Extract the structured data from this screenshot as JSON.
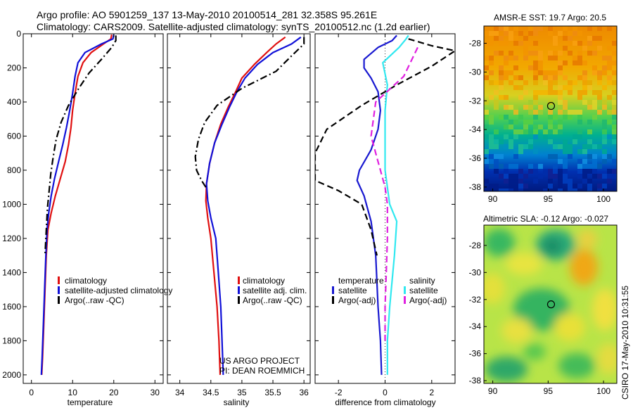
{
  "header": {
    "line1": "Argo profile: AO 5901259_137 13-May-2010 20100514_281 32.358S 95.261E",
    "line2": "Climatology: CARS2009. Satellite-adjusted climatology: synTS_20100512.nc (1.2d earlier)"
  },
  "footer_notes": {
    "project": "US ARGO PROJECT",
    "pi": "PI: DEAN ROEMMICH",
    "stamp": "CSIRO 17-May-2010 10:31:55"
  },
  "colors": {
    "climatology": "#e01010",
    "satellite": "#1010d8",
    "argo": "#000000",
    "diff_temp_sat": "#1818d0",
    "diff_sal_sat": "#30e8f0",
    "diff_sal_argo": "#e020e0"
  },
  "chart_data": [
    {
      "type": "line",
      "name": "temperature-profile",
      "xlabel": "temperature",
      "xlim": [
        -2,
        32
      ],
      "ylim": [
        2050,
        0
      ],
      "y_reversed": true,
      "x_ticks": [
        0,
        10,
        20,
        30
      ],
      "y_ticks": [
        0,
        200,
        400,
        600,
        800,
        1000,
        1200,
        1400,
        1600,
        1800,
        2000
      ],
      "legend": [
        "climatology",
        "satellite-adjusted climatology",
        "Argo(..raw -QC)"
      ],
      "legend_placement": "lower-right",
      "series": [
        {
          "name": "climatology",
          "style": "solid",
          "points": [
            [
              19.5,
              5
            ],
            [
              19.3,
              30
            ],
            [
              17.5,
              60
            ],
            [
              14.5,
              110
            ],
            [
              12.5,
              170
            ],
            [
              11.3,
              250
            ],
            [
              10.6,
              350
            ],
            [
              10.0,
              450
            ],
            [
              9.6,
              550
            ],
            [
              9.0,
              650
            ],
            [
              8.2,
              750
            ],
            [
              7.0,
              850
            ],
            [
              5.8,
              950
            ],
            [
              4.8,
              1050
            ],
            [
              4.0,
              1150
            ],
            [
              3.6,
              1300
            ],
            [
              3.3,
              1500
            ],
            [
              3.0,
              1700
            ],
            [
              2.7,
              1900
            ],
            [
              2.5,
              2000
            ]
          ]
        },
        {
          "name": "satellite-adjusted climatology",
          "style": "solid",
          "points": [
            [
              20.0,
              5
            ],
            [
              19.8,
              30
            ],
            [
              17.0,
              60
            ],
            [
              13.0,
              110
            ],
            [
              11.3,
              170
            ],
            [
              10.6,
              250
            ],
            [
              10.0,
              350
            ],
            [
              9.3,
              450
            ],
            [
              8.5,
              550
            ],
            [
              7.6,
              650
            ],
            [
              6.6,
              750
            ],
            [
              5.6,
              850
            ],
            [
              4.8,
              950
            ],
            [
              4.2,
              1050
            ],
            [
              3.8,
              1150
            ],
            [
              3.5,
              1300
            ],
            [
              3.2,
              1500
            ],
            [
              2.9,
              1700
            ],
            [
              2.6,
              1900
            ],
            [
              2.4,
              2000
            ]
          ]
        },
        {
          "name": "Argo(..raw -QC)",
          "style": "dashdot",
          "points": [
            [
              20.5,
              10
            ],
            [
              20.5,
              40
            ],
            [
              19.5,
              80
            ],
            [
              17.0,
              150
            ],
            [
              14.0,
              230
            ],
            [
              11.5,
              320
            ],
            [
              9.0,
              420
            ],
            [
              7.2,
              520
            ],
            [
              6.0,
              620
            ],
            [
              5.3,
              720
            ],
            [
              4.7,
              820
            ],
            [
              4.3,
              920
            ],
            [
              3.9,
              1020
            ],
            [
              3.6,
              1150
            ],
            [
              3.3,
              1300
            ]
          ]
        }
      ]
    },
    {
      "type": "line",
      "name": "salinity-profile",
      "xlabel": "salinity",
      "xlim": [
        33.8,
        36.1
      ],
      "ylim": [
        2050,
        0
      ],
      "y_reversed": true,
      "x_ticks": [
        34,
        34.5,
        35,
        35.5,
        36
      ],
      "legend": [
        "climatology",
        "satellite adj. clim.",
        "Argo(..raw -QC)"
      ],
      "legend_placement": "lower-right",
      "series": [
        {
          "name": "climatology",
          "style": "solid",
          "points": [
            [
              35.7,
              20
            ],
            [
              35.55,
              60
            ],
            [
              35.4,
              110
            ],
            [
              35.2,
              180
            ],
            [
              35.0,
              260
            ],
            [
              34.9,
              340
            ],
            [
              34.78,
              430
            ],
            [
              34.66,
              530
            ],
            [
              34.56,
              640
            ],
            [
              34.48,
              760
            ],
            [
              34.43,
              880
            ],
            [
              34.42,
              980
            ],
            [
              34.45,
              1080
            ],
            [
              34.5,
              1200
            ],
            [
              34.55,
              1400
            ],
            [
              34.6,
              1600
            ],
            [
              34.63,
              1800
            ],
            [
              34.65,
              2000
            ]
          ]
        },
        {
          "name": "satellite adj. clim.",
          "style": "solid",
          "points": [
            [
              35.95,
              20
            ],
            [
              35.8,
              60
            ],
            [
              35.5,
              110
            ],
            [
              35.25,
              180
            ],
            [
              35.05,
              260
            ],
            [
              34.92,
              340
            ],
            [
              34.8,
              430
            ],
            [
              34.68,
              530
            ],
            [
              34.56,
              640
            ],
            [
              34.48,
              760
            ],
            [
              34.43,
              880
            ],
            [
              34.45,
              980
            ],
            [
              34.5,
              1080
            ],
            [
              34.58,
              1200
            ],
            [
              34.62,
              1400
            ],
            [
              34.66,
              1600
            ],
            [
              34.68,
              1800
            ],
            [
              34.7,
              2000
            ]
          ]
        },
        {
          "name": "Argo(..raw -QC)",
          "style": "dashdot",
          "points": [
            [
              36.0,
              20
            ],
            [
              36.0,
              60
            ],
            [
              35.8,
              130
            ],
            [
              35.55,
              220
            ],
            [
              35.0,
              320
            ],
            [
              34.6,
              420
            ],
            [
              34.4,
              520
            ],
            [
              34.3,
              620
            ],
            [
              34.25,
              720
            ],
            [
              34.27,
              800
            ],
            [
              34.35,
              860
            ],
            [
              34.42,
              900
            ]
          ]
        }
      ]
    },
    {
      "type": "line",
      "name": "difference-profile",
      "xlabel": "difference from climatology",
      "xlim": [
        -3,
        3
      ],
      "ylim": [
        2050,
        0
      ],
      "y_reversed": true,
      "x_ticks": [
        -2,
        0,
        2
      ],
      "legend_groups": [
        {
          "heading": "temperature",
          "entries": [
            "satellite",
            "Argo(-adj)"
          ]
        },
        {
          "heading": "salinity",
          "entries": [
            "satellite",
            "Argo(-adj)"
          ]
        }
      ],
      "legend_placement": "lower-center",
      "series": [
        {
          "name": "temperature satellite",
          "style": "solid",
          "points": [
            [
              0.5,
              10
            ],
            [
              0.3,
              40
            ],
            [
              -0.3,
              80
            ],
            [
              -0.9,
              150
            ],
            [
              -0.9,
              200
            ],
            [
              -0.6,
              260
            ],
            [
              -0.3,
              340
            ],
            [
              -0.2,
              450
            ],
            [
              -0.3,
              560
            ],
            [
              -0.6,
              680
            ],
            [
              -1.1,
              800
            ],
            [
              -1.2,
              860
            ],
            [
              -0.9,
              950
            ],
            [
              -0.6,
              1100
            ],
            [
              -0.4,
              1300
            ],
            [
              -0.3,
              1600
            ],
            [
              -0.2,
              1800
            ],
            [
              -0.15,
              2000
            ]
          ]
        },
        {
          "name": "temperature Argo(-adj)",
          "style": "dashed",
          "points": [
            [
              1.0,
              30
            ],
            [
              2.0,
              70
            ],
            [
              3.0,
              100
            ],
            [
              2.0,
              190
            ],
            [
              0.5,
              300
            ],
            [
              -1.0,
              420
            ],
            [
              -2.5,
              560
            ],
            [
              -3.0,
              700
            ],
            [
              -3.0,
              860
            ],
            [
              -2.0,
              920
            ],
            [
              -1.0,
              1000
            ],
            [
              -0.6,
              1150
            ],
            [
              -0.35,
              1300
            ]
          ]
        },
        {
          "name": "salinity satellite",
          "style": "solid",
          "points": [
            [
              1.0,
              10
            ],
            [
              0.9,
              30
            ],
            [
              0.6,
              80
            ],
            [
              -0.1,
              170
            ],
            [
              0.1,
              300
            ],
            [
              0.0,
              450
            ],
            [
              0.0,
              600
            ],
            [
              0.0,
              800
            ],
            [
              0.2,
              1000
            ],
            [
              0.5,
              1100
            ],
            [
              0.4,
              1300
            ],
            [
              0.2,
              1600
            ],
            [
              0.1,
              1800
            ],
            [
              0.1,
              2000
            ]
          ]
        },
        {
          "name": "salinity Argo(-adj)",
          "style": "dashed",
          "points": [
            [
              1.4,
              80
            ],
            [
              0.8,
              250
            ],
            [
              -0.4,
              400
            ],
            [
              -0.6,
              600
            ],
            [
              -0.3,
              750
            ],
            [
              -0.2,
              800
            ],
            [
              0.0,
              900
            ],
            [
              0.1,
              1000
            ],
            [
              0.1,
              1200
            ],
            [
              0.05,
              1400
            ],
            [
              0.0,
              1600
            ],
            [
              0.0,
              1800
            ]
          ]
        }
      ]
    },
    {
      "type": "heatmap",
      "name": "sst-map",
      "title": "AMSR-E SST: 19.7 Argo: 20.5",
      "xlim": [
        89.2,
        101.2
      ],
      "ylim": [
        -38.3,
        -26.8
      ],
      "x_ticks": [
        90,
        95,
        100
      ],
      "y_ticks": [
        -28,
        -30,
        -32,
        -34,
        -36,
        -38
      ],
      "marker": {
        "lon": 95.261,
        "lat": -32.358
      }
    },
    {
      "type": "heatmap",
      "name": "sla-map",
      "title": "Altimetric SLA: -0.12 Argo: -0.027",
      "xlim": [
        89.2,
        101.2
      ],
      "ylim": [
        -38.2,
        -26.5
      ],
      "x_ticks": [
        90,
        95,
        100
      ],
      "y_ticks": [
        -28,
        -30,
        -32,
        -34,
        -36,
        -38
      ],
      "marker": {
        "lon": 95.261,
        "lat": -32.358
      }
    }
  ]
}
